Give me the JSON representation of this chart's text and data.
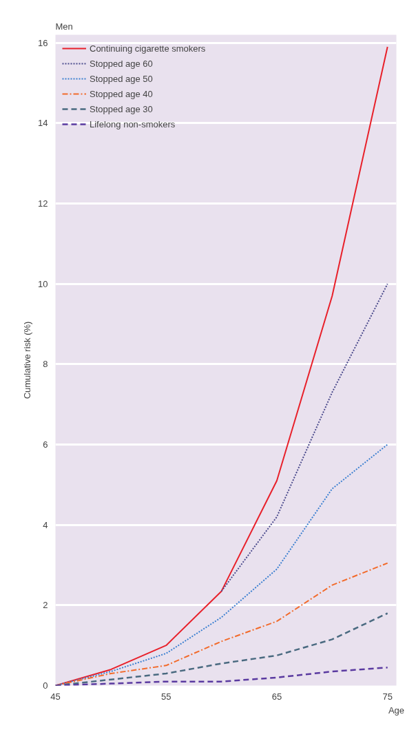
{
  "chart_data": {
    "type": "line",
    "title": "Men",
    "xlabel": "Age",
    "ylabel": "Cumulative risk (%)",
    "x": [
      45,
      50,
      55,
      60,
      65,
      70,
      75
    ],
    "series": [
      {
        "name": "Continuing cigarette smokers",
        "color": "#e8202a",
        "line_style": "solid",
        "values": [
          0,
          0.4,
          1.0,
          2.35,
          5.1,
          9.7,
          15.9
        ]
      },
      {
        "name": "Stopped age 60",
        "color": "#4a4a8c",
        "line_style": "dotted",
        "x": [
          60,
          65,
          70,
          75
        ],
        "values": [
          2.35,
          4.2,
          7.3,
          10.0
        ]
      },
      {
        "name": "Stopped age 50",
        "color": "#3a7fd0",
        "line_style": "dotted",
        "values": [
          0,
          0.35,
          0.8,
          1.7,
          2.9,
          4.9,
          6.0
        ]
      },
      {
        "name": "Stopped age 40",
        "color": "#f26a2a",
        "line_style": "dashdot",
        "values": [
          0,
          0.3,
          0.5,
          1.1,
          1.6,
          2.5,
          3.05
        ]
      },
      {
        "name": "Stopped age 30",
        "color": "#4a6a80",
        "line_style": "dashed",
        "values": [
          0,
          0.15,
          0.3,
          0.55,
          0.75,
          1.15,
          1.8
        ]
      },
      {
        "name": "Lifelong non-smokers",
        "color": "#5a3aa0",
        "line_style": "dashed",
        "values": [
          0,
          0.05,
          0.1,
          0.1,
          0.2,
          0.35,
          0.45
        ]
      }
    ],
    "xlim": [
      45,
      75.8
    ],
    "ylim": [
      0,
      16.2
    ],
    "xticks": [
      45,
      55,
      65,
      75
    ],
    "yticks": [
      0,
      2,
      4,
      6,
      8,
      10,
      12,
      14,
      16
    ],
    "grid": "y",
    "legend": "top left",
    "marker": "none"
  }
}
